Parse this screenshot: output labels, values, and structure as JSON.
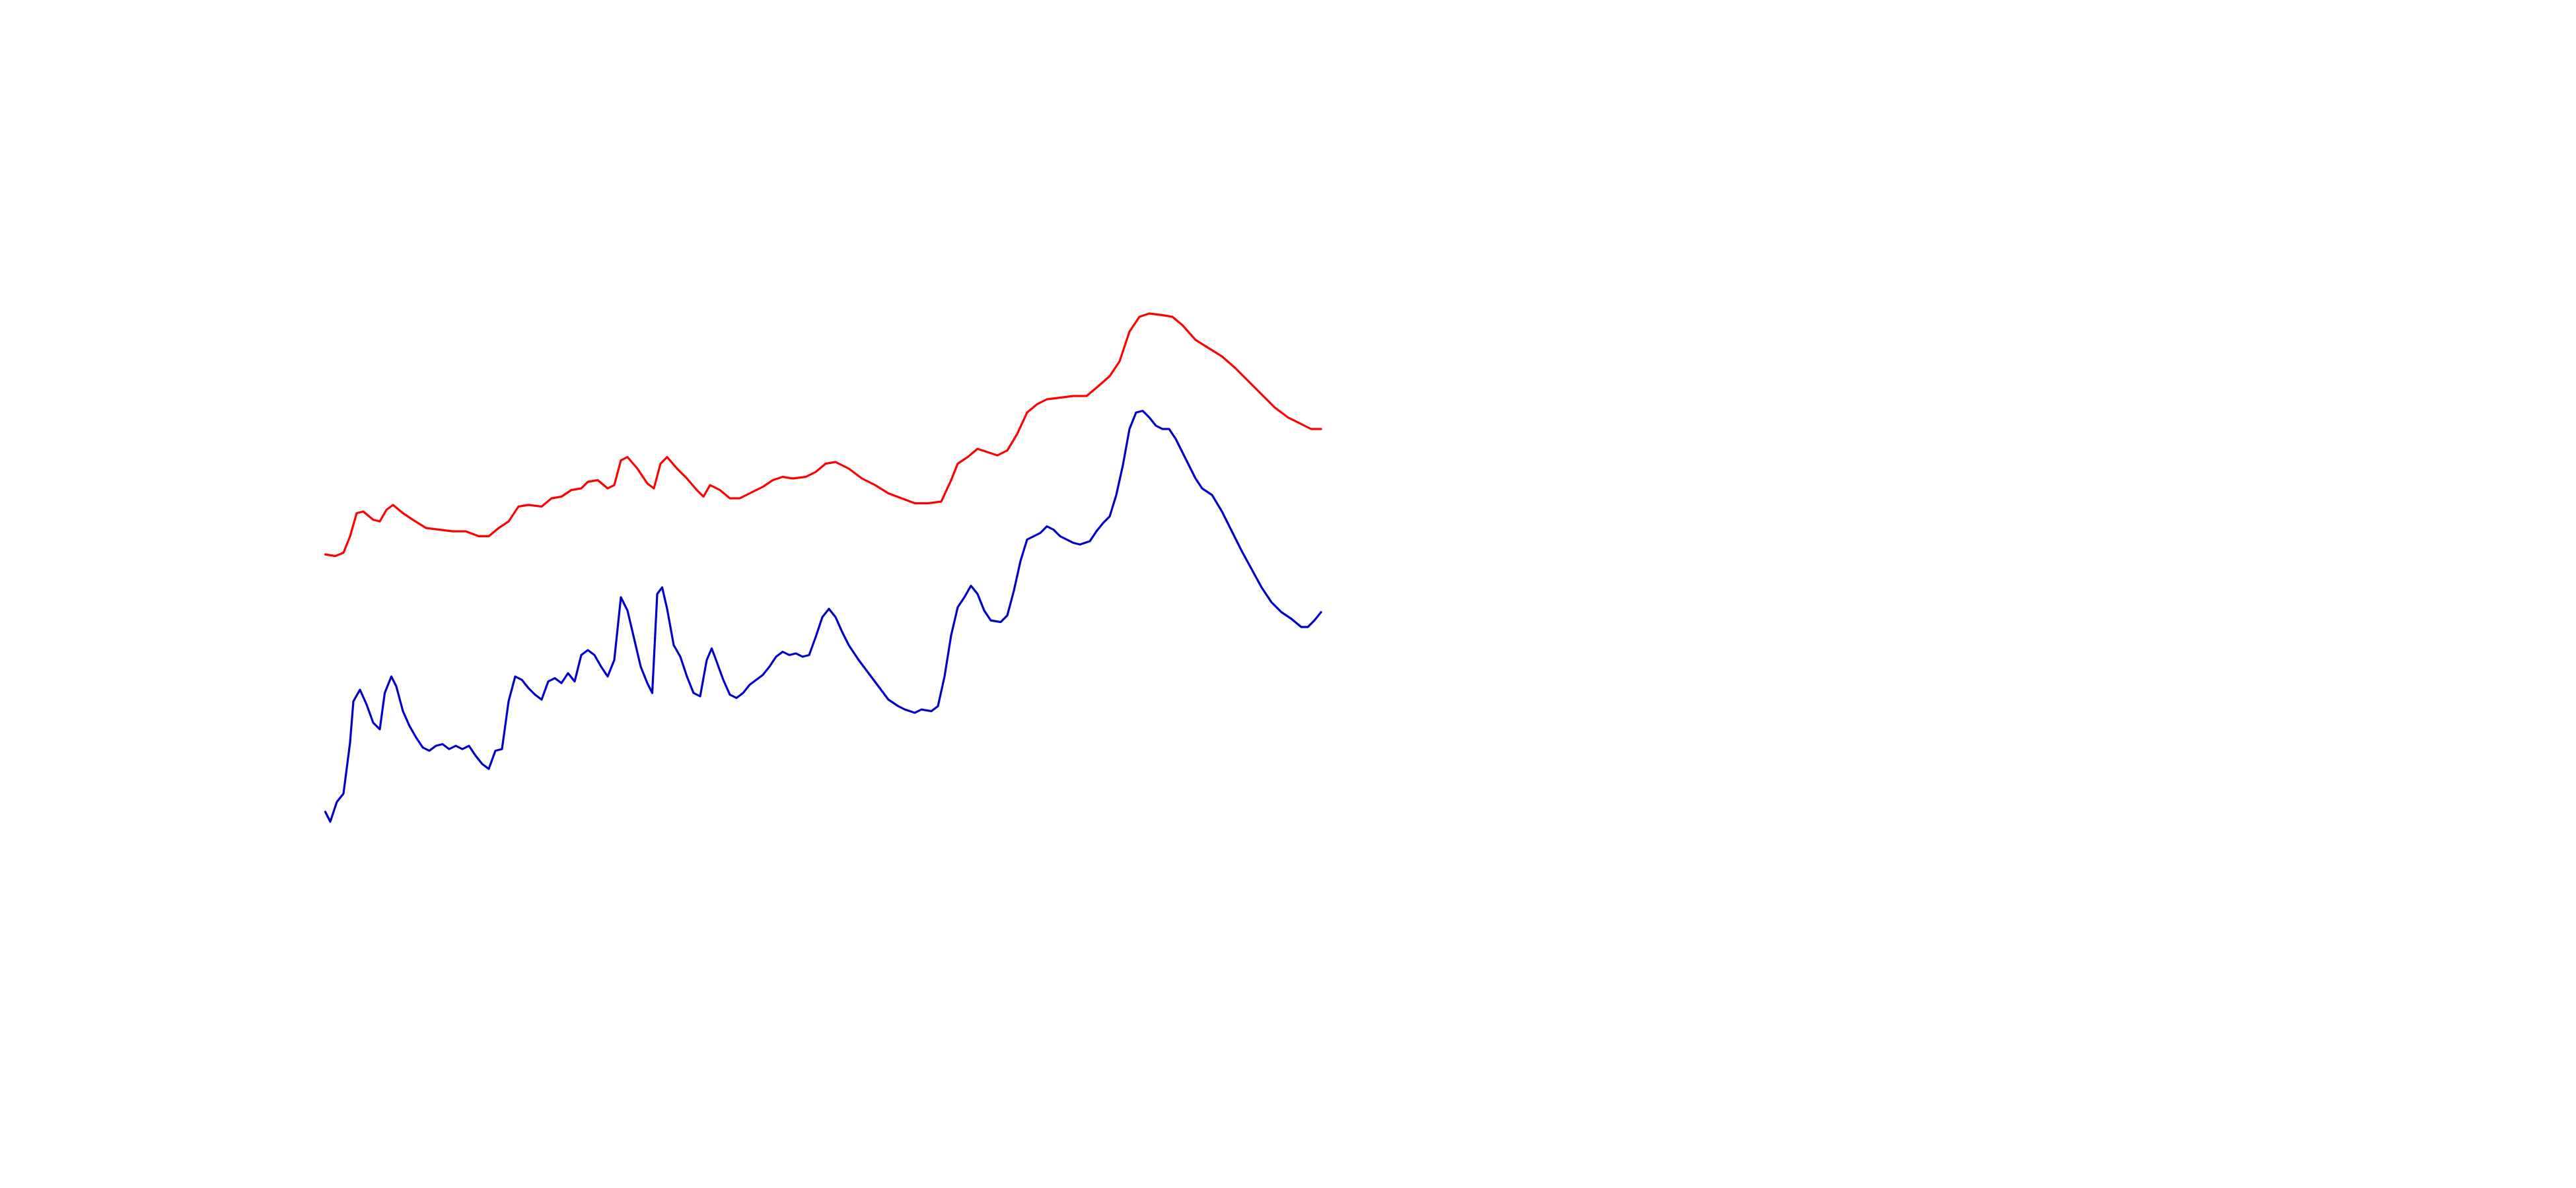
{
  "chart_data": {
    "type": "line",
    "xlim": [
      0,
      1560
    ],
    "ylim": [
      0,
      720
    ],
    "series": [
      {
        "color": "#ff0000",
        "x": [
          197,
          203,
          208,
          212,
          216,
          220,
          226,
          230,
          234,
          238,
          244,
          250,
          258,
          266,
          274,
          282,
          290,
          296,
          302,
          308,
          314,
          320,
          328,
          334,
          340,
          346,
          352,
          356,
          362,
          368,
          372,
          376,
          380,
          386,
          392,
          396,
          400,
          404,
          410,
          416,
          422,
          426,
          430,
          436,
          442,
          448,
          454,
          462,
          468,
          474,
          480,
          488,
          494,
          500,
          506,
          514,
          522,
          530,
          538,
          546,
          554,
          562,
          570,
          576,
          580,
          586,
          592,
          598,
          604,
          610,
          616,
          622,
          628,
          634,
          642,
          650,
          658,
          664,
          672,
          678,
          684,
          690,
          696,
          704,
          710,
          716,
          724,
          732,
          740,
          748,
          756,
          764,
          772,
          780,
          788,
          794,
          800
        ],
        "values": [
          384,
          383,
          385,
          395,
          409,
          410,
          405,
          404,
          411,
          414,
          409,
          405,
          400,
          399,
          398,
          398,
          395,
          395,
          400,
          404,
          413,
          414,
          413,
          418,
          419,
          423,
          424,
          428,
          429,
          424,
          426,
          441,
          443,
          436,
          427,
          424,
          439,
          443,
          436,
          430,
          423,
          419,
          426,
          423,
          418,
          418,
          421,
          425,
          429,
          431,
          430,
          431,
          434,
          439,
          440,
          436,
          430,
          426,
          421,
          418,
          415,
          415,
          416,
          429,
          439,
          443,
          448,
          446,
          444,
          447,
          457,
          470,
          475,
          478,
          479,
          480,
          480,
          485,
          492,
          501,
          519,
          528,
          530,
          529,
          528,
          523,
          514,
          509,
          504,
          497,
          489,
          481,
          473,
          467,
          463,
          460,
          460
        ]
      },
      {
        "color": "#0000cc",
        "x": [
          197,
          200,
          204,
          208,
          212,
          214,
          218,
          222,
          226,
          230,
          233,
          237,
          240,
          244,
          248,
          252,
          256,
          260,
          264,
          268,
          272,
          276,
          280,
          284,
          288,
          292,
          296,
          300,
          304,
          308,
          312,
          316,
          320,
          324,
          328,
          332,
          336,
          340,
          344,
          348,
          352,
          356,
          360,
          364,
          368,
          372,
          376,
          380,
          384,
          388,
          392,
          395,
          398,
          401,
          404,
          408,
          412,
          416,
          420,
          424,
          428,
          431,
          434,
          438,
          442,
          446,
          450,
          454,
          458,
          462,
          466,
          470,
          474,
          478,
          482,
          486,
          490,
          494,
          498,
          502,
          506,
          510,
          514,
          520,
          526,
          532,
          538,
          544,
          548,
          554,
          558,
          564,
          568,
          572,
          576,
          580,
          584,
          588,
          592,
          596,
          600,
          606,
          610,
          614,
          618,
          622,
          626,
          630,
          634,
          638,
          642,
          646,
          650,
          654,
          660,
          664,
          668,
          672,
          676,
          680,
          684,
          688,
          692,
          696,
          700,
          704,
          708,
          712,
          716,
          720,
          724,
          728,
          734,
          740,
          746,
          752,
          758,
          764,
          770,
          776,
          782,
          788,
          792,
          796,
          800
        ],
        "values": [
          228,
          222,
          234,
          239,
          270,
          295,
          302,
          293,
          282,
          278,
          300,
          310,
          304,
          289,
          280,
          273,
          267,
          265,
          268,
          269,
          266,
          268,
          266,
          268,
          262,
          257,
          254,
          265,
          266,
          295,
          310,
          308,
          303,
          299,
          296,
          307,
          309,
          306,
          312,
          307,
          323,
          326,
          323,
          316,
          310,
          320,
          358,
          350,
          333,
          316,
          306,
          300,
          360,
          364,
          351,
          329,
          322,
          310,
          300,
          298,
          320,
          327,
          319,
          308,
          299,
          297,
          300,
          305,
          308,
          311,
          316,
          322,
          325,
          323,
          324,
          322,
          323,
          334,
          346,
          351,
          346,
          337,
          329,
          320,
          312,
          304,
          296,
          292,
          290,
          288,
          290,
          289,
          292,
          310,
          335,
          352,
          358,
          365,
          360,
          350,
          344,
          343,
          347,
          362,
          380,
          393,
          395,
          397,
          401,
          399,
          395,
          393,
          391,
          390,
          392,
          398,
          403,
          407,
          420,
          438,
          460,
          470,
          471,
          467,
          462,
          460,
          460,
          454,
          446,
          438,
          430,
          424,
          420,
          410,
          398,
          386,
          375,
          364,
          355,
          349,
          345,
          340,
          340,
          344,
          349
        ]
      }
    ]
  }
}
